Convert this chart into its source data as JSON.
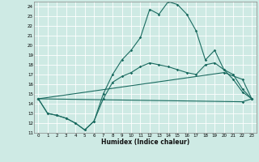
{
  "title": "",
  "xlabel": "Humidex (Indice chaleur)",
  "bg_color": "#ceeae4",
  "grid_color": "#ffffff",
  "line_color": "#1a6b60",
  "xlim": [
    -0.5,
    23.5
  ],
  "ylim": [
    11,
    24.5
  ],
  "line1_x": [
    0,
    1,
    2,
    3,
    4,
    5,
    6,
    7,
    8,
    9,
    10,
    11,
    12,
    13,
    14,
    15,
    16,
    17,
    18,
    19,
    20,
    21,
    22,
    23
  ],
  "line1_y": [
    14.5,
    13.0,
    12.8,
    12.5,
    12.0,
    11.3,
    12.2,
    15.0,
    17.0,
    18.5,
    19.5,
    20.8,
    23.7,
    23.2,
    24.5,
    24.2,
    23.2,
    21.5,
    18.5,
    19.5,
    17.5,
    16.5,
    15.2,
    14.5
  ],
  "line2_x": [
    0,
    1,
    2,
    3,
    4,
    5,
    6,
    7,
    8,
    9,
    10,
    11,
    12,
    13,
    14,
    15,
    16,
    17,
    18,
    19,
    20,
    21,
    22,
    23
  ],
  "line2_y": [
    14.5,
    13.0,
    12.8,
    12.5,
    12.0,
    11.3,
    12.2,
    14.5,
    16.2,
    16.8,
    17.2,
    17.8,
    18.2,
    18.0,
    17.8,
    17.5,
    17.2,
    17.0,
    18.0,
    18.2,
    17.5,
    17.0,
    15.5,
    14.5
  ],
  "line3_x": [
    0,
    20,
    22,
    23
  ],
  "line3_y": [
    14.5,
    17.2,
    16.5,
    14.5
  ],
  "line4_x": [
    0,
    22,
    23
  ],
  "line4_y": [
    14.5,
    14.2,
    14.5
  ],
  "xticks": [
    0,
    1,
    2,
    3,
    4,
    5,
    6,
    7,
    8,
    9,
    10,
    11,
    12,
    13,
    14,
    15,
    16,
    17,
    18,
    19,
    20,
    21,
    22,
    23
  ],
  "yticks": [
    11,
    12,
    13,
    14,
    15,
    16,
    17,
    18,
    19,
    20,
    21,
    22,
    23,
    24
  ]
}
